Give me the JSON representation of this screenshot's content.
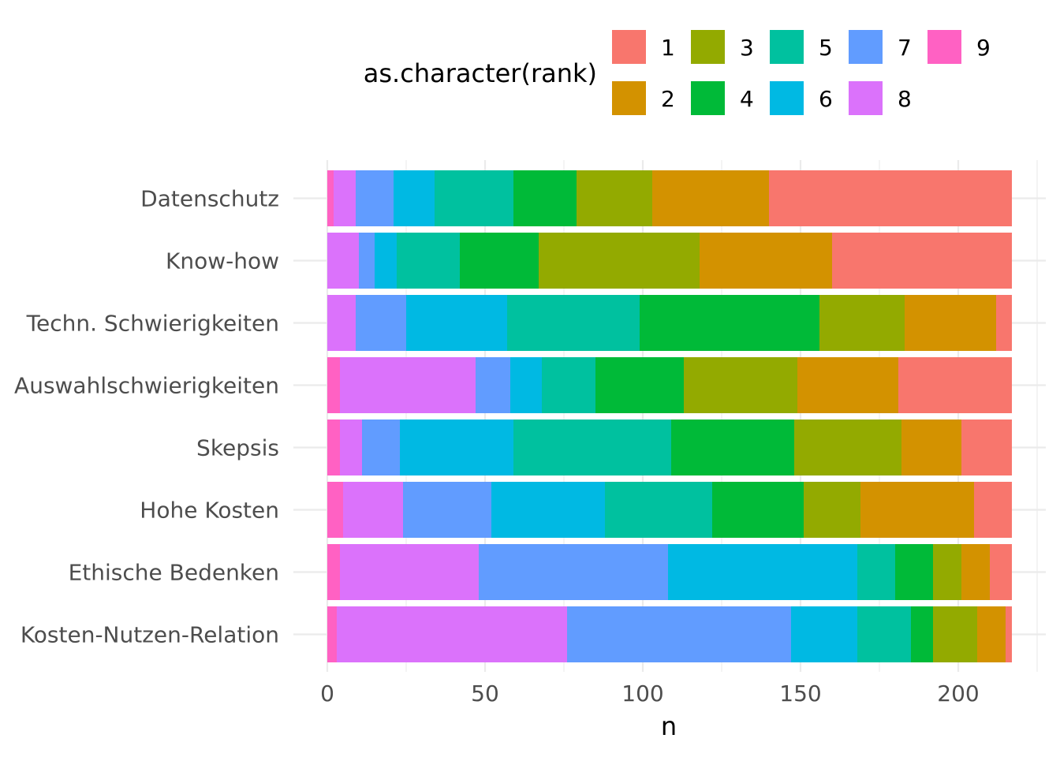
{
  "chart_data": {
    "type": "bar",
    "orientation": "horizontal",
    "stacked": true,
    "categories": [
      "Datenschutz",
      "Know-how",
      "Techn. Schwierigkeiten",
      "Auswahlschwierigkeiten",
      "Skepsis",
      "Hohe Kosten",
      "Ethische Bedenken",
      "Kosten-Nutzen-Relation"
    ],
    "stack_order": [
      "9",
      "8",
      "7",
      "6",
      "5",
      "4",
      "3",
      "2",
      "1"
    ],
    "series": [
      {
        "name": "1",
        "color": "#F8766D",
        "values": [
          77,
          57,
          5,
          36,
          16,
          12,
          7,
          2
        ]
      },
      {
        "name": "2",
        "color": "#D39200",
        "values": [
          37,
          42,
          29,
          32,
          19,
          36,
          9,
          9
        ]
      },
      {
        "name": "3",
        "color": "#93AA00",
        "values": [
          24,
          51,
          27,
          36,
          34,
          18,
          9,
          14
        ]
      },
      {
        "name": "4",
        "color": "#00BA38",
        "values": [
          20,
          25,
          57,
          28,
          39,
          29,
          12,
          7
        ]
      },
      {
        "name": "5",
        "color": "#00C19F",
        "values": [
          25,
          20,
          42,
          17,
          50,
          34,
          12,
          17
        ]
      },
      {
        "name": "6",
        "color": "#00B9E3",
        "values": [
          13,
          7,
          32,
          10,
          36,
          36,
          60,
          21
        ]
      },
      {
        "name": "7",
        "color": "#619CFF",
        "values": [
          12,
          5,
          16,
          11,
          12,
          28,
          60,
          71
        ]
      },
      {
        "name": "8",
        "color": "#DB72FB",
        "values": [
          7,
          10,
          9,
          43,
          7,
          19,
          44,
          73
        ]
      },
      {
        "name": "9",
        "color": "#FF61C3",
        "values": [
          2,
          0,
          0,
          4,
          4,
          5,
          4,
          3
        ]
      }
    ],
    "xlabel": "n",
    "ylabel": "",
    "xlim": [
      0,
      217
    ],
    "xticks": [
      0,
      50,
      100,
      150,
      200
    ],
    "grid": true,
    "legend": {
      "title": "as.character(rank)",
      "position": "top"
    }
  }
}
